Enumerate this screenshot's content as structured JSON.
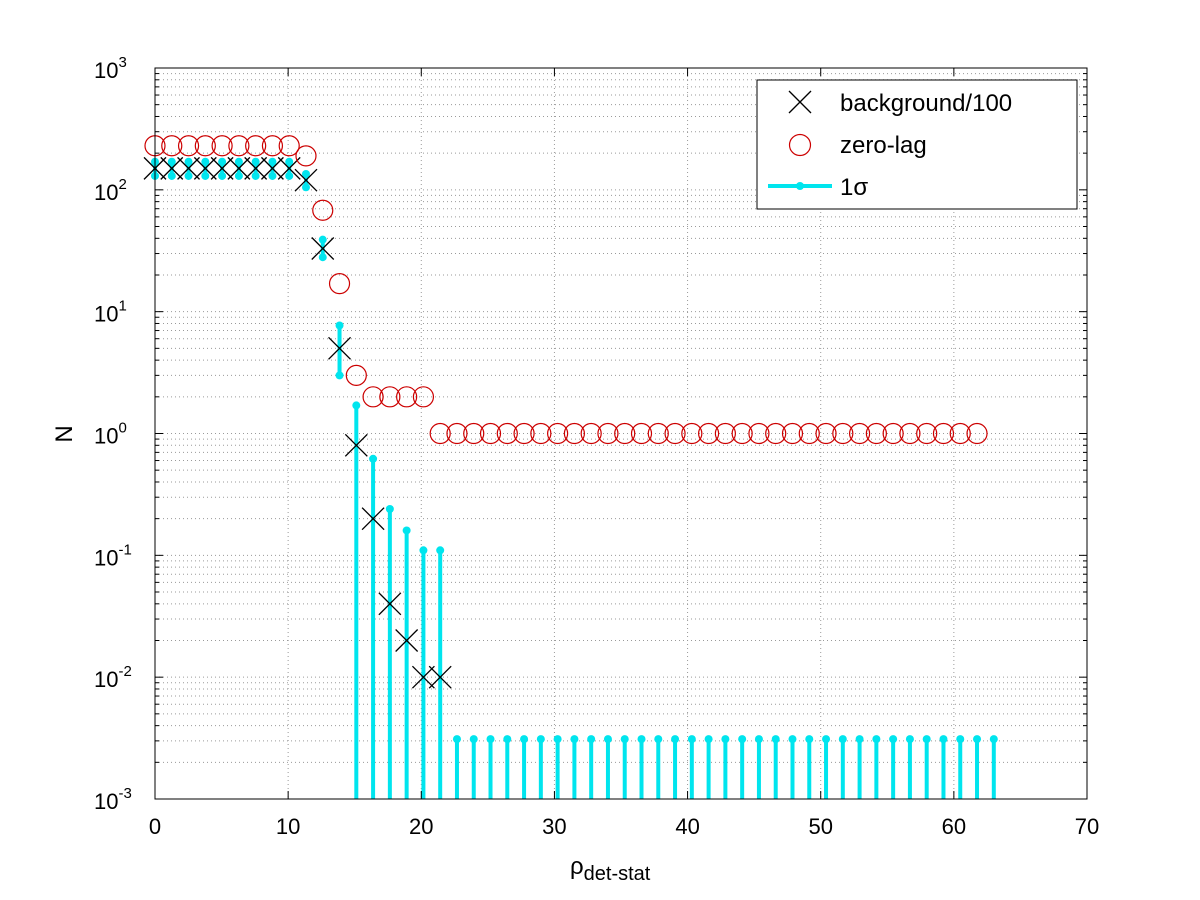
{
  "chart_data": {
    "type": "scatter",
    "xlabel": "ρ",
    "xlabel_sub": "det-stat",
    "ylabel": "N",
    "xlim": [
      0,
      70
    ],
    "ylim": [
      0.001,
      1000
    ],
    "yscale": "log",
    "grid": true,
    "legend_position": "top-right",
    "x_ticks": [
      "0",
      "10",
      "20",
      "30",
      "40",
      "50",
      "60",
      "70"
    ],
    "y_ticks": [
      {
        "base": "10",
        "exp": "-3",
        "value": 0.001
      },
      {
        "base": "10",
        "exp": "-2",
        "value": 0.01
      },
      {
        "base": "10",
        "exp": "-1",
        "value": 0.1
      },
      {
        "base": "10",
        "exp": "0",
        "value": 1
      },
      {
        "base": "10",
        "exp": "1",
        "value": 10
      },
      {
        "base": "10",
        "exp": "2",
        "value": 100
      },
      {
        "base": "10",
        "exp": "3",
        "value": 1000
      }
    ],
    "legend": [
      {
        "label": "background/100",
        "marker": "x",
        "color": "#000000"
      },
      {
        "label": "zero-lag",
        "marker": "o",
        "color": "#cc0000"
      },
      {
        "label": "1σ",
        "marker": "errorbar",
        "color": "#00e5ee"
      }
    ],
    "series": [
      {
        "name": "background/100",
        "marker": "x",
        "color": "#000000",
        "points": [
          [
            0,
            150
          ],
          [
            1.26,
            150
          ],
          [
            2.52,
            150
          ],
          [
            3.78,
            150
          ],
          [
            5.04,
            150
          ],
          [
            6.3,
            150
          ],
          [
            7.56,
            150
          ],
          [
            8.82,
            150
          ],
          [
            10.08,
            150
          ],
          [
            11.34,
            120
          ],
          [
            12.6,
            33
          ],
          [
            13.86,
            5
          ],
          [
            15.12,
            0.8
          ],
          [
            16.38,
            0.2
          ],
          [
            17.64,
            0.04
          ],
          [
            18.9,
            0.02
          ],
          [
            20.16,
            0.01
          ],
          [
            21.42,
            0.01
          ]
        ]
      },
      {
        "name": "zero-lag",
        "marker": "o",
        "color": "#cc0000",
        "points": [
          [
            0,
            230
          ],
          [
            1.26,
            230
          ],
          [
            2.52,
            230
          ],
          [
            3.78,
            230
          ],
          [
            5.04,
            230
          ],
          [
            6.3,
            230
          ],
          [
            7.56,
            230
          ],
          [
            8.82,
            230
          ],
          [
            10.08,
            230
          ],
          [
            11.34,
            190
          ],
          [
            12.6,
            68
          ],
          [
            13.86,
            17
          ],
          [
            15.12,
            3
          ],
          [
            16.38,
            2
          ],
          [
            17.64,
            2
          ],
          [
            18.9,
            2
          ],
          [
            20.16,
            2
          ],
          [
            21.42,
            1
          ],
          [
            22.68,
            1
          ],
          [
            23.94,
            1
          ],
          [
            25.2,
            1
          ],
          [
            26.46,
            1
          ],
          [
            27.72,
            1
          ],
          [
            28.98,
            1
          ],
          [
            30.24,
            1
          ],
          [
            31.5,
            1
          ],
          [
            32.76,
            1
          ],
          [
            34.02,
            1
          ],
          [
            35.28,
            1
          ],
          [
            36.54,
            1
          ],
          [
            37.8,
            1
          ],
          [
            39.06,
            1
          ],
          [
            40.32,
            1
          ],
          [
            41.58,
            1
          ],
          [
            42.84,
            1
          ],
          [
            44.1,
            1
          ],
          [
            45.36,
            1
          ],
          [
            46.62,
            1
          ],
          [
            47.88,
            1
          ],
          [
            49.14,
            1
          ],
          [
            50.4,
            1
          ],
          [
            51.66,
            1
          ],
          [
            52.92,
            1
          ],
          [
            54.18,
            1
          ],
          [
            55.44,
            1
          ],
          [
            56.7,
            1
          ],
          [
            57.96,
            1
          ],
          [
            59.22,
            1
          ],
          [
            60.48,
            1
          ],
          [
            61.74,
            1
          ]
        ]
      },
      {
        "name": "1σ",
        "marker": "errorbar",
        "color": "#00e5ee",
        "bars": [
          [
            0,
            130,
            170
          ],
          [
            1.26,
            130,
            170
          ],
          [
            2.52,
            130,
            170
          ],
          [
            3.78,
            130,
            170
          ],
          [
            5.04,
            130,
            170
          ],
          [
            6.3,
            130,
            170
          ],
          [
            7.56,
            130,
            170
          ],
          [
            8.82,
            130,
            170
          ],
          [
            10.08,
            130,
            170
          ],
          [
            11.34,
            105,
            135
          ],
          [
            12.6,
            28,
            39
          ],
          [
            13.86,
            3,
            7.7
          ],
          [
            15.12,
            0.001,
            1.7
          ],
          [
            16.38,
            0.001,
            0.62
          ],
          [
            17.64,
            0.001,
            0.24
          ],
          [
            18.9,
            0.001,
            0.16
          ],
          [
            20.16,
            0.001,
            0.11
          ],
          [
            21.42,
            0.001,
            0.11
          ],
          [
            22.68,
            0.001,
            0.0031
          ],
          [
            23.94,
            0.001,
            0.0031
          ],
          [
            25.2,
            0.001,
            0.0031
          ],
          [
            26.46,
            0.001,
            0.0031
          ],
          [
            27.72,
            0.001,
            0.0031
          ],
          [
            28.98,
            0.001,
            0.0031
          ],
          [
            30.24,
            0.001,
            0.0031
          ],
          [
            31.5,
            0.001,
            0.0031
          ],
          [
            32.76,
            0.001,
            0.0031
          ],
          [
            34.02,
            0.001,
            0.0031
          ],
          [
            35.28,
            0.001,
            0.0031
          ],
          [
            36.54,
            0.001,
            0.0031
          ],
          [
            37.8,
            0.001,
            0.0031
          ],
          [
            39.06,
            0.001,
            0.0031
          ],
          [
            40.32,
            0.001,
            0.0031
          ],
          [
            41.58,
            0.001,
            0.0031
          ],
          [
            42.84,
            0.001,
            0.0031
          ],
          [
            44.1,
            0.001,
            0.0031
          ],
          [
            45.36,
            0.001,
            0.0031
          ],
          [
            46.62,
            0.001,
            0.0031
          ],
          [
            47.88,
            0.001,
            0.0031
          ],
          [
            49.14,
            0.001,
            0.0031
          ],
          [
            50.4,
            0.001,
            0.0031
          ],
          [
            51.66,
            0.001,
            0.0031
          ],
          [
            52.92,
            0.001,
            0.0031
          ],
          [
            54.18,
            0.001,
            0.0031
          ],
          [
            55.44,
            0.001,
            0.0031
          ],
          [
            56.7,
            0.001,
            0.0031
          ],
          [
            57.96,
            0.001,
            0.0031
          ],
          [
            59.22,
            0.001,
            0.0031
          ],
          [
            60.48,
            0.001,
            0.0031
          ],
          [
            61.74,
            0.001,
            0.0031
          ],
          [
            63.0,
            0.001,
            0.0031
          ]
        ]
      }
    ]
  }
}
